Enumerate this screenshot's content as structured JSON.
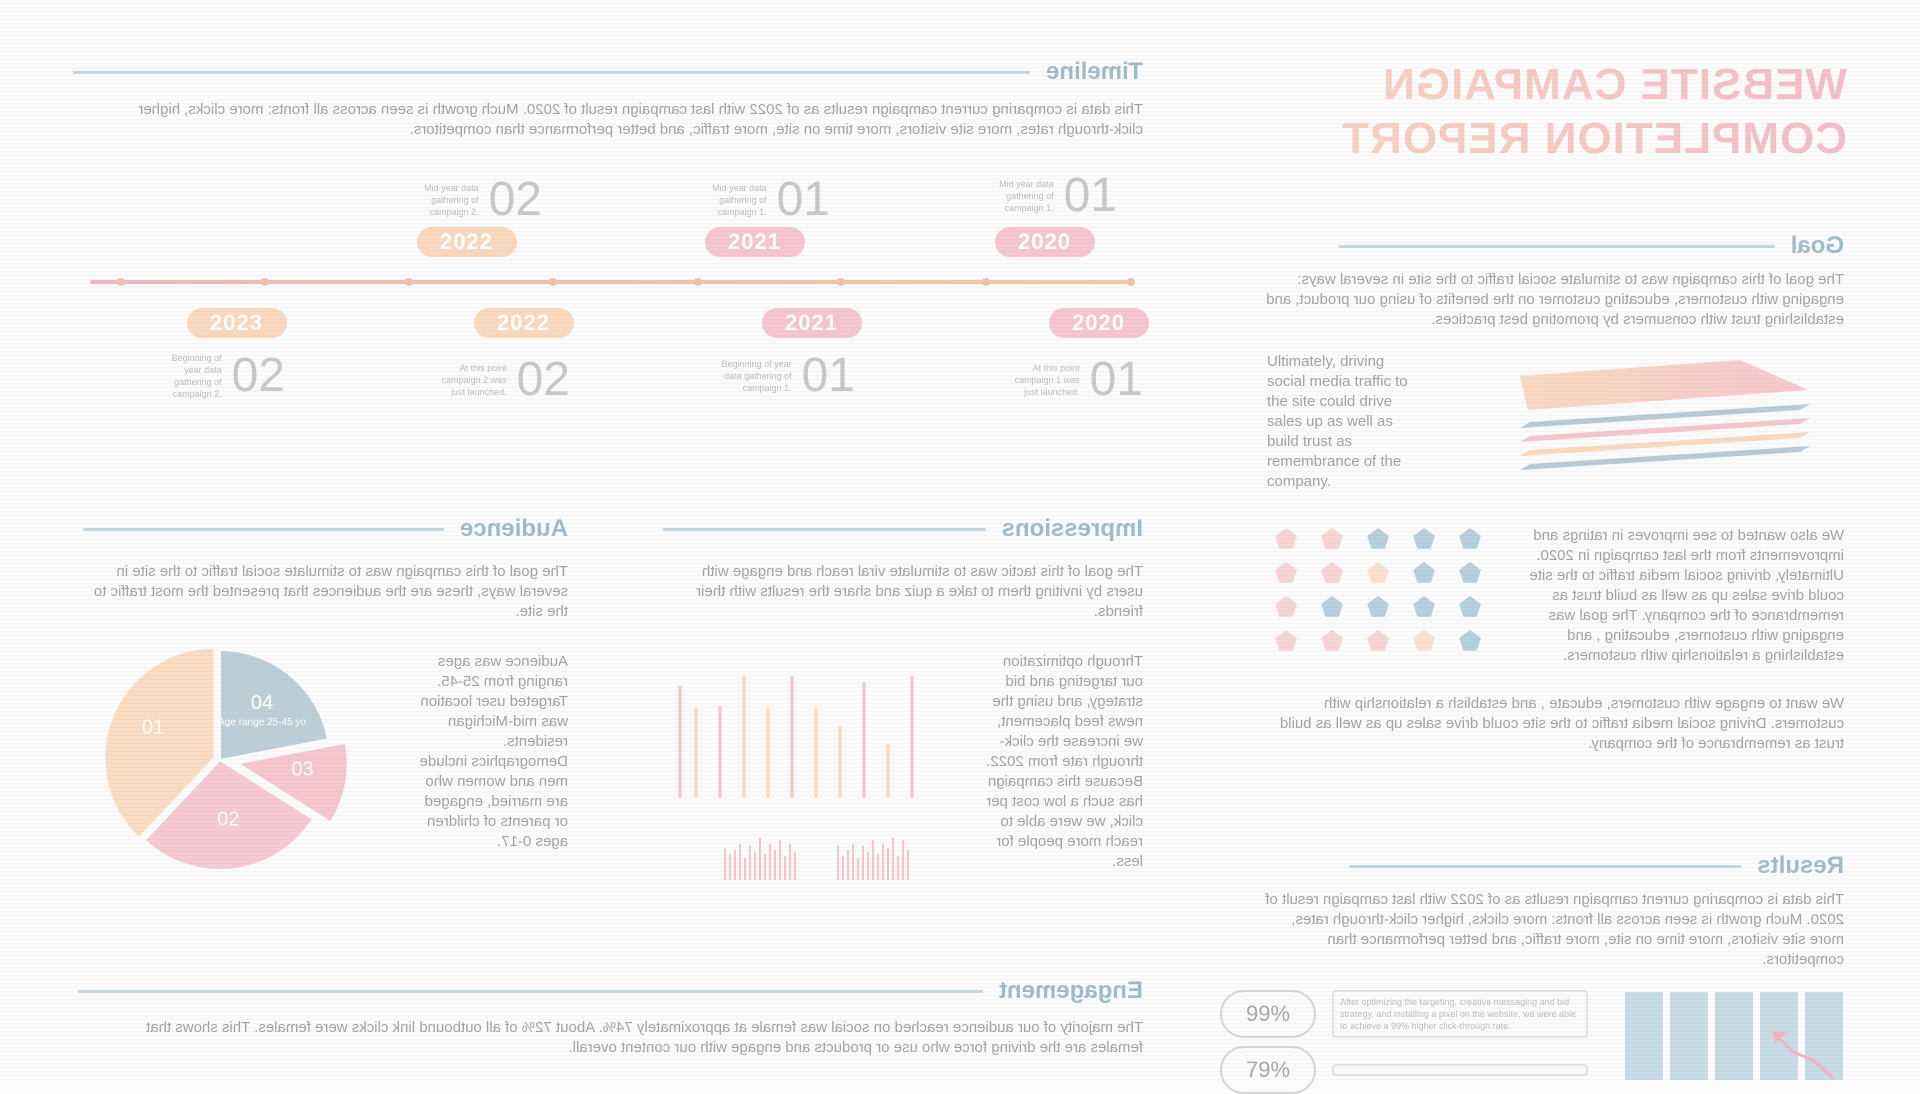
{
  "report": {
    "title_line1": "WEBSITE CAMPAIGN",
    "title_line2": "COMPLETION REPORT"
  },
  "timeline": {
    "heading": "Timeline",
    "description": "This data is comparing current campaign results as of 2022 with last campaign result of 2020. Much growth is seen across all fronts: more clicks, higher click-through rates, more site visitors, more time on site, more traffic, and better performance than competitors.",
    "top": [
      {
        "year": "2020",
        "num": "01",
        "note": "Mid year data gathering of campaign 1."
      },
      {
        "year": "2021",
        "num": "01",
        "note": "Mid year data gathering of campaign 1."
      },
      {
        "year": "2022",
        "num": "02",
        "note": "Mid year data gathering of campaign 2."
      }
    ],
    "bottom": [
      {
        "year": "2020",
        "num": "01",
        "note": "At this point campaign 1 was just launched."
      },
      {
        "year": "2021",
        "num": "01",
        "note": "Beginning of year data gathering of campaign 1."
      },
      {
        "year": "2022",
        "num": "02",
        "note": "At this point campaign 2 was just launched."
      },
      {
        "year": "2023",
        "num": "02",
        "note": "Beginning of year data gathering of campaign 2."
      }
    ]
  },
  "goal": {
    "heading": "Goal",
    "intro": "The goal of this campaign was to stimulate social traffic to the site in several ways: engaging with customers, educating customer on the benefits of using our product, and establishing trust with consumers by promoting best practices.",
    "side_text": "Ultimately, driving social media traffic to the site could drive sales up as well as build trust as remembrance of the company.",
    "stars_text": "We also wanted to see improves in ratings and improvements from the last campaign in 2020. Ultimately, driving social media traffic to the site could drive sales up as well as build trust as remembrance of the company. The goal was engaging with customers, educating , and establishing a relationship with customers.",
    "closing": "We want to engage with customers, educate , and establish a relationship with customers. Driving social media traffic to the site could drive sales up as well as build trust as remembrance of the company."
  },
  "stars": {
    "rows": [
      [
        "blue",
        "blue",
        "blue",
        "pink",
        "pink"
      ],
      [
        "blue",
        "blue",
        "peach",
        "pink",
        "pink"
      ],
      [
        "blue",
        "blue",
        "blue",
        "blue",
        "pink"
      ],
      [
        "blue",
        "peach",
        "pink",
        "pink",
        "pink"
      ]
    ]
  },
  "impressions": {
    "heading": "Impressions",
    "intro": "The goal of this tactic was to stimulate viral reach and engage with users by inviting them to take a quiz and share the results with their friends.",
    "body": "Through optimization our targeting and bid strategy, and using the news feed placement, we increase the click-through rate from 2022. Because this campaign has such a low cost per click, we were able to reach more people for less."
  },
  "audience": {
    "heading": "Audience",
    "intro": "The goal of this campaign was to stimulate social traffic to the site in several ways, these are the audiences that presented the most traffic to the site.",
    "body": "Audience was ages ranging from 25-45. Targeted user location was mid-Michigan residents. Demographics include men and women who are married, engaged or parents of children ages 0-17.",
    "slices": [
      {
        "num": "01",
        "label": "",
        "value": 0.38,
        "color": "#f9dcc2"
      },
      {
        "num": "02",
        "label": "",
        "value": 0.28,
        "color": "#f7c9d2"
      },
      {
        "num": "03",
        "label": "",
        "value": 0.12,
        "color": "#f6c6cf"
      },
      {
        "num": "04",
        "label": "Age range 25-45 yo",
        "value": 0.22,
        "color": "#bccfd9"
      }
    ]
  },
  "results": {
    "heading": "Results",
    "body": "This data is comparing current campaign results as of 2022 with last campaign result of 2020. Much growth is seen across all fronts: more clicks, higher click-through rates, more site visitors, more time on site, more traffic, and better performance than competitors.",
    "rows": [
      {
        "pct": "99%",
        "note": "After optimizing the targeting, creative messaging and bid strategy, and installing a pixel on the website, we were able to achieve a 99% higher click-through rate."
      },
      {
        "pct": "79%",
        "note": ""
      }
    ]
  },
  "engagement": {
    "heading": "Engagement",
    "body": "The majority of our audience reached on social was female at approximately 74%. About 72% of all outbound link clicks were females. This shows that females are the driving force who use or products and engage with our content overall."
  },
  "colors": {
    "pink": "#f5c6d0",
    "peach": "#f8d9bf",
    "blue": "#c7dbe5",
    "heading_blue": "#9fbccb"
  }
}
